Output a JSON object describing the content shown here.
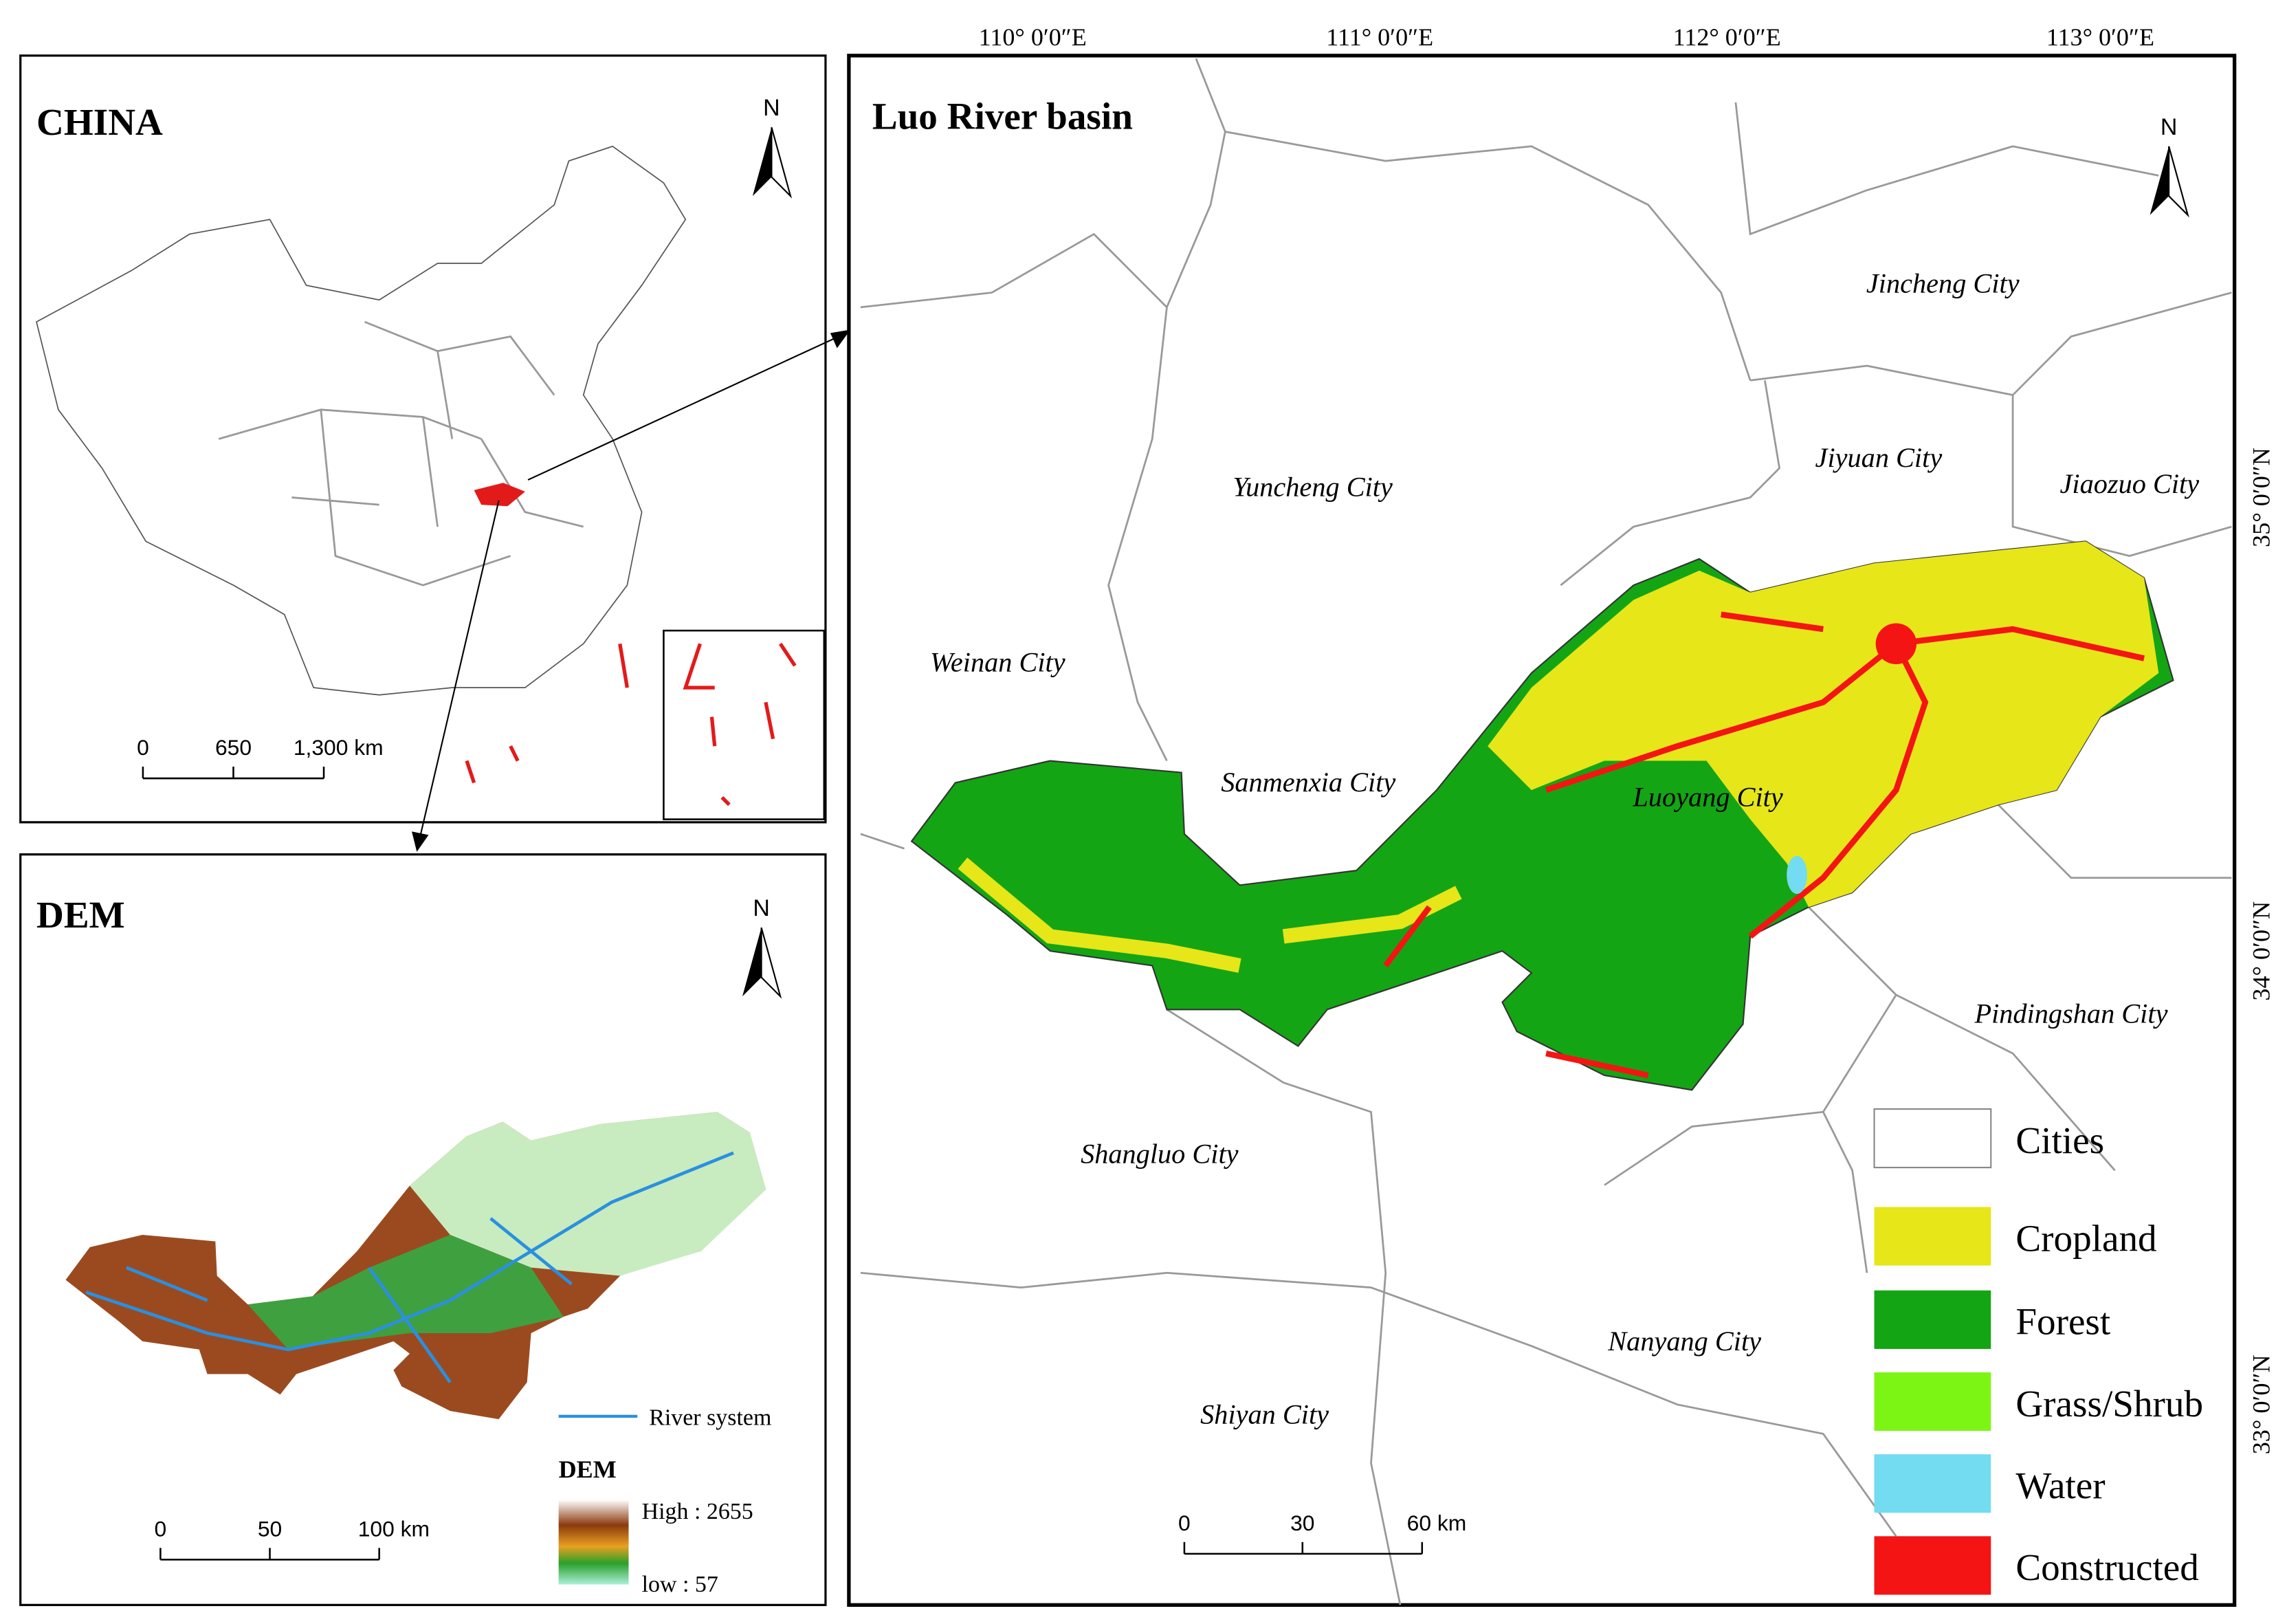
{
  "china_panel": {
    "title": "CHINA",
    "north": "N",
    "scale": [
      "0",
      "650",
      "1,300 km"
    ]
  },
  "dem_panel": {
    "title": "DEM",
    "north": "N",
    "scale": [
      "0",
      "50",
      "100 km"
    ],
    "legend": {
      "river": "River system",
      "title": "DEM",
      "high": "High : 2655",
      "low": "low : 57"
    }
  },
  "basin_panel": {
    "title": "Luo River  basin",
    "north": "N",
    "longitudes": [
      "110° 0′0″E",
      "111° 0′0″E",
      "112° 0′0″E",
      "113° 0′0″E"
    ],
    "latitudes": [
      "35° 0′0″N",
      "34° 0′0″N",
      "33° 0′0″N"
    ],
    "cities": [
      "Jincheng City",
      "Jiyuan City",
      "Jiaozuo City",
      "Yuncheng City",
      "Weinan City",
      "Sanmenxia City",
      "Luoyang City",
      "Pindingshan City",
      "Shangluo City",
      "Nanyang City",
      "Shiyan City"
    ],
    "scale": [
      "0",
      "30",
      "60 km"
    ],
    "legend": [
      {
        "label": "Cities",
        "color": "#ffffff"
      },
      {
        "label": "Cropland",
        "color": "#e6e619"
      },
      {
        "label": "Forest",
        "color": "#14a514"
      },
      {
        "label": "Grass/Shrub",
        "color": "#7cf514"
      },
      {
        "label": "Water",
        "color": "#73dcf0"
      },
      {
        "label": "Constructed",
        "color": "#f51414"
      }
    ]
  }
}
